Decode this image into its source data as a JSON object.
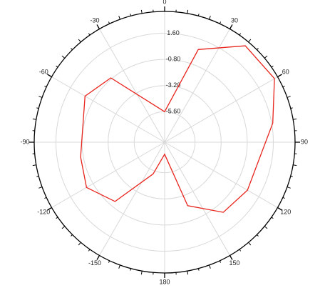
{
  "chart_data": {
    "type": "polar",
    "theta": [
      0,
      20,
      40,
      60,
      80,
      120,
      140,
      160,
      180,
      200,
      220,
      240,
      260,
      300,
      320
    ],
    "series": [
      {
        "color": "#e8231c",
        "values": [
          -5.6,
          0.65,
          3.15,
          3.27,
          1.7,
          0.4,
          0.0,
          -2.2,
          -7.3,
          -5.3,
          -1.3,
          -0.1,
          -0.55,
          0.06,
          -0.7
        ]
      }
    ],
    "rlim": [
      -8.4,
      3.6
    ],
    "rticks": [
      {
        "value": 1.6,
        "label": "1.60"
      },
      {
        "value": -0.8,
        "label": "-0.80"
      },
      {
        "value": -3.2,
        "label": "-3.20"
      },
      {
        "value": -5.6,
        "label": "-5.60"
      }
    ],
    "thetaticks": [
      0,
      30,
      60,
      90,
      120,
      150,
      180,
      -30,
      -60,
      -90,
      -120,
      -150
    ],
    "grid": true
  }
}
